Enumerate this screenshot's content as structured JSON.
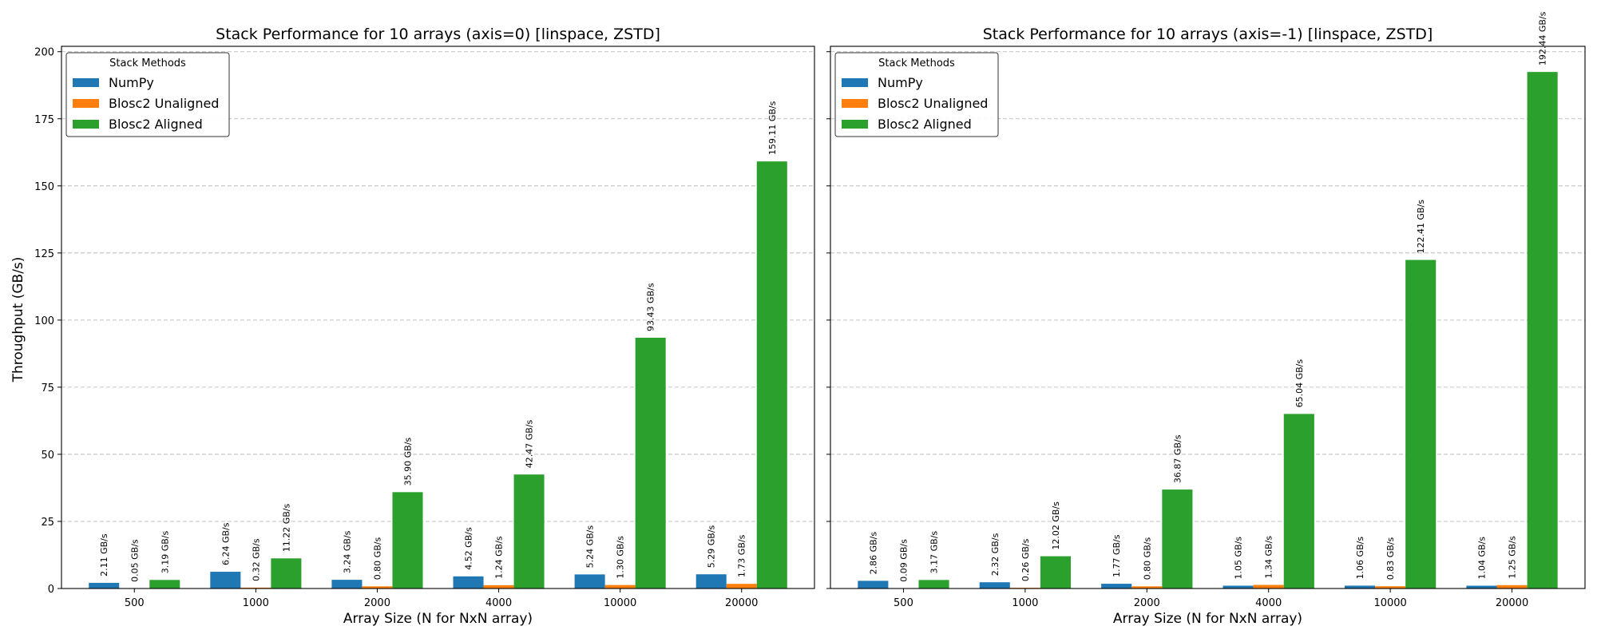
{
  "figure": {
    "ylabel": "Throughput (GB/s)",
    "xlabel": "Array Size (N for NxN array)"
  },
  "chart_data": [
    {
      "type": "bar",
      "title": "Stack Performance for 10 arrays (axis=0) [linspace, ZSTD]",
      "xlabel": "Array Size (N for NxN array)",
      "ylabel": "Throughput (GB/s)",
      "ylim": [
        0,
        202
      ],
      "yticks": [
        0,
        25,
        50,
        75,
        100,
        125,
        150,
        175,
        200
      ],
      "grid": "y-dashed",
      "categories": [
        "500",
        "1000",
        "2000",
        "4000",
        "10000",
        "20000"
      ],
      "legend": {
        "title": "Stack Methods",
        "placement": "top-left"
      },
      "series": [
        {
          "name": "NumPy",
          "color": "#1f77b4",
          "values": [
            2.11,
            6.24,
            3.24,
            4.52,
            5.24,
            5.29
          ],
          "labels": [
            "2.11 GB/s",
            "6.24 GB/s",
            "3.24 GB/s",
            "4.52 GB/s",
            "5.24 GB/s",
            "5.29 GB/s"
          ]
        },
        {
          "name": "Blosc2 Unaligned",
          "color": "#ff7f0e",
          "values": [
            0.05,
            0.32,
            0.8,
            1.24,
            1.3,
            1.73
          ],
          "labels": [
            "0.05 GB/s",
            "0.32 GB/s",
            "0.80 GB/s",
            "1.24 GB/s",
            "1.30 GB/s",
            "1.73 GB/s"
          ]
        },
        {
          "name": "Blosc2 Aligned",
          "color": "#2ca02c",
          "values": [
            3.19,
            11.22,
            35.9,
            42.47,
            93.43,
            159.11
          ],
          "labels": [
            "3.19 GB/s",
            "11.22 GB/s",
            "35.90 GB/s",
            "42.47 GB/s",
            "93.43 GB/s",
            "159.11 GB/s"
          ]
        }
      ]
    },
    {
      "type": "bar",
      "title": "Stack Performance for 10 arrays (axis=-1) [linspace, ZSTD]",
      "xlabel": "Array Size (N for NxN array)",
      "ylabel": "",
      "ylim": [
        0,
        202
      ],
      "yticks": [
        0,
        25,
        50,
        75,
        100,
        125,
        150,
        175,
        200
      ],
      "grid": "y-dashed",
      "categories": [
        "500",
        "1000",
        "2000",
        "4000",
        "10000",
        "20000"
      ],
      "legend": {
        "title": "Stack Methods",
        "placement": "top-left"
      },
      "series": [
        {
          "name": "NumPy",
          "color": "#1f77b4",
          "values": [
            2.86,
            2.32,
            1.77,
            1.05,
            1.06,
            1.04
          ],
          "labels": [
            "2.86 GB/s",
            "2.32 GB/s",
            "1.77 GB/s",
            "1.05 GB/s",
            "1.06 GB/s",
            "1.04 GB/s"
          ]
        },
        {
          "name": "Blosc2 Unaligned",
          "color": "#ff7f0e",
          "values": [
            0.09,
            0.26,
            0.8,
            1.34,
            0.83,
            1.25
          ],
          "labels": [
            "0.09 GB/s",
            "0.26 GB/s",
            "0.80 GB/s",
            "1.34 GB/s",
            "0.83 GB/s",
            "1.25 GB/s"
          ]
        },
        {
          "name": "Blosc2 Aligned",
          "color": "#2ca02c",
          "values": [
            3.17,
            12.02,
            36.87,
            65.04,
            122.41,
            192.44
          ],
          "labels": [
            "3.17 GB/s",
            "12.02 GB/s",
            "36.87 GB/s",
            "65.04 GB/s",
            "122.41 GB/s",
            "192.44 GB/s"
          ]
        }
      ]
    }
  ]
}
